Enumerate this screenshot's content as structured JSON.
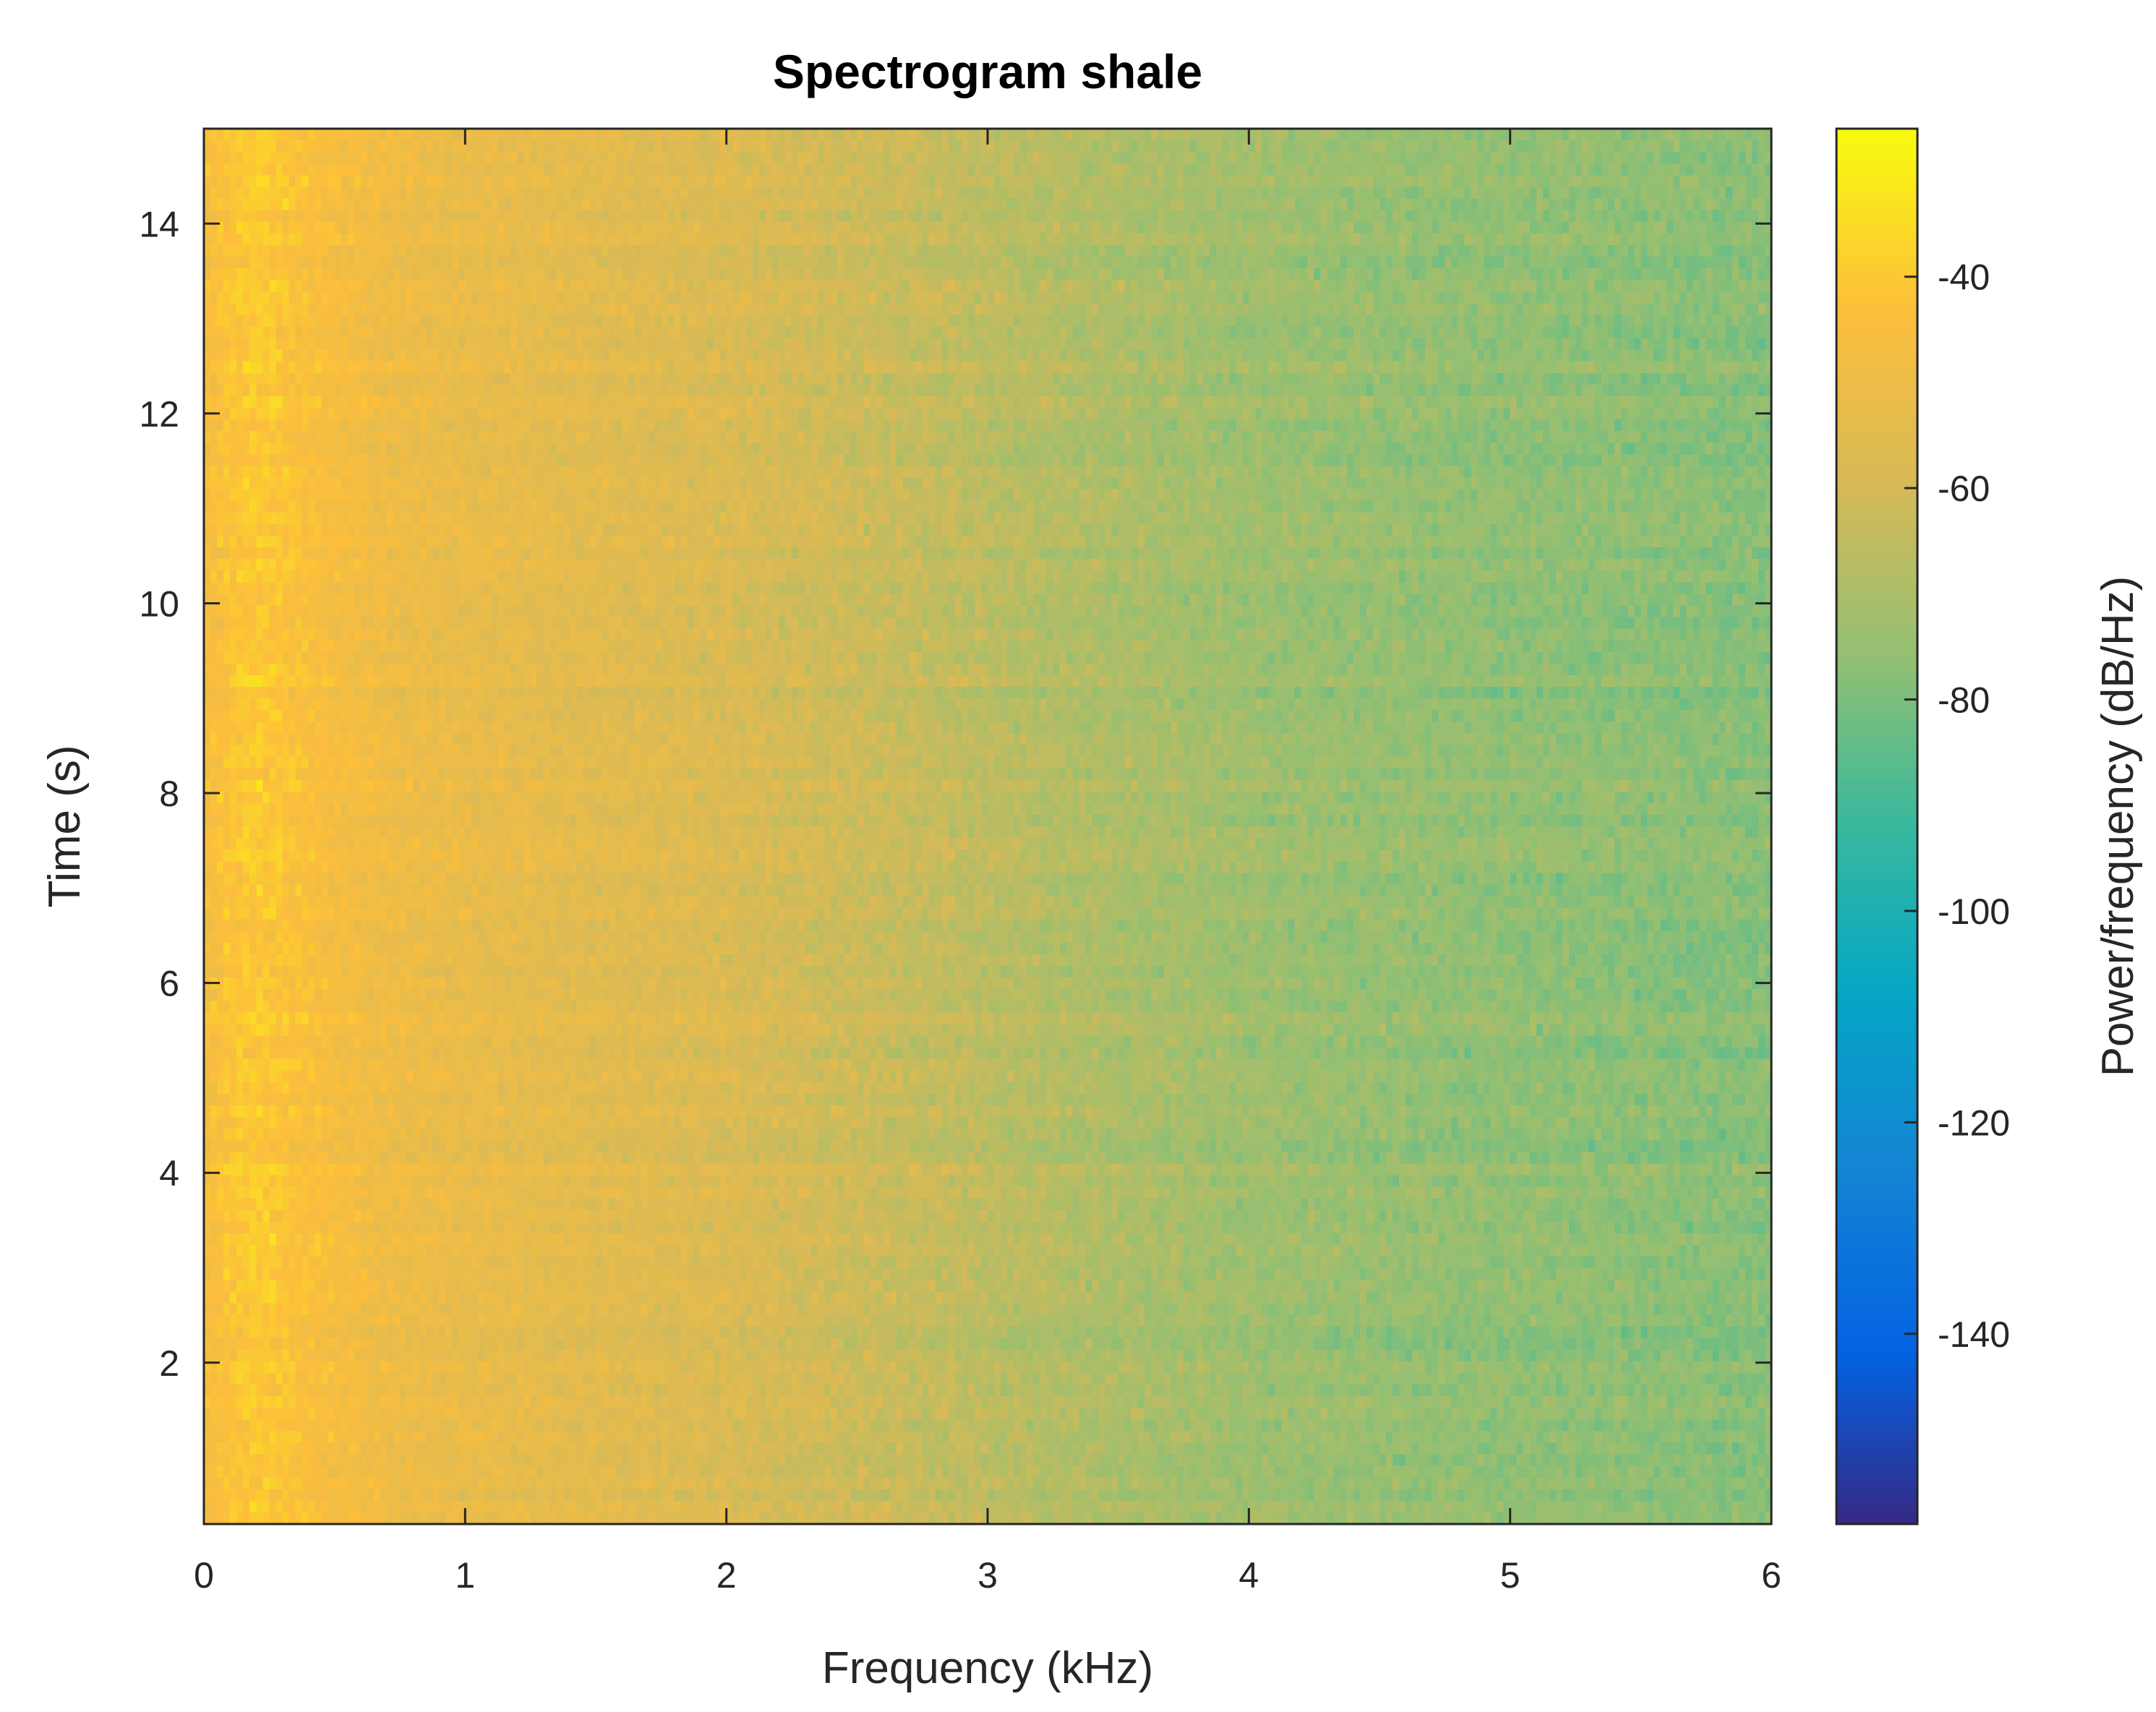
{
  "chart_data": {
    "type": "heatmap",
    "title": "Spectrogram shale",
    "xlabel": "Frequency (kHz)",
    "ylabel": "Time (s)",
    "xlim": [
      0,
      6
    ],
    "ylim": [
      0.3,
      15
    ],
    "xticks": [
      0,
      1,
      2,
      3,
      4,
      5,
      6
    ],
    "xtick_labels": [
      "0",
      "1",
      "2",
      "3",
      "4",
      "5",
      "6"
    ],
    "yticks": [
      2,
      4,
      6,
      8,
      10,
      12,
      14
    ],
    "ytick_labels": [
      "2",
      "4",
      "6",
      "8",
      "10",
      "12",
      "14"
    ],
    "colorbar": {
      "label": "Power/frequency (dB/Hz)",
      "clim": [
        -158,
        -26
      ],
      "ticks": [
        -40,
        -60,
        -80,
        -100,
        -120,
        -140
      ],
      "tick_labels": [
        "-40",
        "-60",
        "-80",
        "-100",
        "-120",
        "-140"
      ],
      "colormap": "parula"
    },
    "power_profile_db": {
      "frequency_khz": [
        0,
        0.1,
        0.2,
        0.3,
        0.5,
        0.75,
        1,
        1.5,
        2,
        2.5,
        3,
        3.5,
        4,
        4.5,
        5,
        5.5,
        6
      ],
      "power_db": [
        -46,
        -42,
        -40,
        -42,
        -46,
        -50,
        -52,
        -55,
        -58,
        -62,
        -66,
        -70,
        -73,
        -75,
        -76,
        -77,
        -78
      ]
    },
    "noise_std_db": 4
  },
  "colors": {
    "axis": "#262626",
    "background": "#ffffff"
  }
}
